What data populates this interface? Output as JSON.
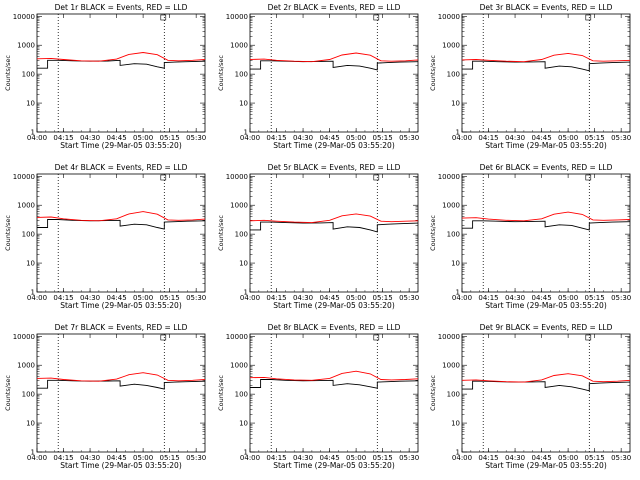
{
  "page_title": "",
  "colors": {
    "events": "#000000",
    "lld": "#ff0000",
    "axis": "#000000",
    "background": "#ffffff"
  },
  "chart_data": [
    {
      "type": "line",
      "title": "Det 1r BLACK = Events, RED = LLD",
      "xlabel": "Start Time (29-Mar-05 03:55:20)",
      "ylabel": "Counts/sec",
      "ylog": true,
      "ylim": [
        1,
        12000
      ],
      "xlim": [
        "04:00",
        "05:35"
      ],
      "xticks": [
        "04:00",
        "04:15",
        "04:30",
        "04:45",
        "05:00",
        "05:15",
        "05:30"
      ],
      "yticks": [
        "1",
        "10",
        "100",
        "1000",
        "10000"
      ],
      "grid": false,
      "markers": [
        "04:12",
        "05:12"
      ],
      "series": [
        {
          "name": "Events",
          "color": "#000000",
          "x": [
            "04:00",
            "04:06",
            "04:06",
            "04:12",
            "04:20",
            "04:30",
            "04:40",
            "04:47",
            "04:47",
            "04:55",
            "05:02",
            "05:08",
            "05:12",
            "05:12",
            "05:18",
            "05:25",
            "05:35"
          ],
          "y": [
            160,
            160,
            300,
            300,
            290,
            280,
            285,
            300,
            200,
            230,
            220,
            180,
            160,
            250,
            260,
            270,
            280
          ]
        },
        {
          "name": "LLD",
          "color": "#ff0000",
          "x": [
            "04:00",
            "04:08",
            "04:15",
            "04:25",
            "04:35",
            "04:45",
            "04:52",
            "05:00",
            "05:08",
            "05:14",
            "05:20",
            "05:28",
            "05:35"
          ],
          "y": [
            340,
            350,
            320,
            290,
            280,
            330,
            480,
            560,
            470,
            300,
            290,
            300,
            320
          ]
        }
      ]
    },
    {
      "type": "line",
      "title": "Det 2r BLACK = Events, RED = LLD",
      "xlabel": "Start Time (29-Mar-05 03:55:20)",
      "ylabel": "Counts/sec",
      "ylog": true,
      "ylim": [
        1,
        12000
      ],
      "xlim": [
        "04:00",
        "05:35"
      ],
      "xticks": [
        "04:00",
        "04:15",
        "04:30",
        "04:45",
        "05:00",
        "05:15",
        "05:30"
      ],
      "yticks": [
        "1",
        "10",
        "100",
        "1000",
        "10000"
      ],
      "grid": false,
      "markers": [
        "04:12",
        "05:12"
      ],
      "series": [
        {
          "name": "Events",
          "color": "#000000",
          "x": [
            "04:00",
            "04:06",
            "04:06",
            "04:12",
            "04:20",
            "04:30",
            "04:40",
            "04:47",
            "04:47",
            "04:55",
            "05:02",
            "05:08",
            "05:12",
            "05:12",
            "05:18",
            "05:25",
            "05:35"
          ],
          "y": [
            150,
            150,
            290,
            290,
            280,
            270,
            275,
            280,
            170,
            200,
            190,
            160,
            140,
            240,
            250,
            260,
            270
          ]
        },
        {
          "name": "LLD",
          "color": "#ff0000",
          "x": [
            "04:00",
            "04:08",
            "04:15",
            "04:25",
            "04:35",
            "04:45",
            "04:52",
            "05:00",
            "05:08",
            "05:14",
            "05:20",
            "05:28",
            "05:35"
          ],
          "y": [
            320,
            330,
            300,
            280,
            270,
            320,
            460,
            540,
            450,
            290,
            280,
            290,
            310
          ]
        }
      ]
    },
    {
      "type": "line",
      "title": "Det 3r BLACK = Events, RED = LLD",
      "xlabel": "Start Time (29-Mar-05 03:55:20)",
      "ylabel": "Counts/sec",
      "ylog": true,
      "ylim": [
        1,
        12000
      ],
      "xlim": [
        "04:00",
        "05:35"
      ],
      "xticks": [
        "04:00",
        "04:15",
        "04:30",
        "04:45",
        "05:00",
        "05:15",
        "05:30"
      ],
      "yticks": [
        "1",
        "10",
        "100",
        "1000",
        "10000"
      ],
      "grid": false,
      "markers": [
        "04:12",
        "05:12"
      ],
      "series": [
        {
          "name": "Events",
          "color": "#000000",
          "x": [
            "04:00",
            "04:06",
            "04:06",
            "04:12",
            "04:20",
            "04:30",
            "04:40",
            "04:47",
            "04:47",
            "04:55",
            "05:02",
            "05:08",
            "05:12",
            "05:12",
            "05:18",
            "05:25",
            "05:35"
          ],
          "y": [
            150,
            150,
            280,
            280,
            270,
            260,
            265,
            270,
            160,
            190,
            180,
            150,
            130,
            230,
            240,
            250,
            260
          ]
        },
        {
          "name": "LLD",
          "color": "#ff0000",
          "x": [
            "04:00",
            "04:08",
            "04:15",
            "04:25",
            "04:35",
            "04:45",
            "04:52",
            "05:00",
            "05:08",
            "05:14",
            "05:20",
            "05:28",
            "05:35"
          ],
          "y": [
            310,
            320,
            300,
            280,
            270,
            320,
            450,
            520,
            440,
            290,
            280,
            290,
            300
          ]
        }
      ]
    },
    {
      "type": "line",
      "title": "Det 4r BLACK = Events, RED = LLD",
      "xlabel": "Start Time (29-Mar-05 03:55:20)",
      "ylabel": "Counts/sec",
      "ylog": true,
      "ylim": [
        1,
        12000
      ],
      "xlim": [
        "04:00",
        "05:35"
      ],
      "xticks": [
        "04:00",
        "04:15",
        "04:30",
        "04:45",
        "05:00",
        "05:15",
        "05:30"
      ],
      "yticks": [
        "1",
        "10",
        "100",
        "1000",
        "10000"
      ],
      "grid": false,
      "markers": [
        "04:12",
        "05:12"
      ],
      "series": [
        {
          "name": "Events",
          "color": "#000000",
          "x": [
            "04:00",
            "04:06",
            "04:06",
            "04:12",
            "04:20",
            "04:30",
            "04:40",
            "04:47",
            "04:47",
            "04:55",
            "05:02",
            "05:08",
            "05:12",
            "05:12",
            "05:18",
            "05:25",
            "05:35"
          ],
          "y": [
            170,
            170,
            320,
            320,
            300,
            290,
            295,
            300,
            190,
            220,
            210,
            170,
            150,
            260,
            270,
            280,
            290
          ]
        },
        {
          "name": "LLD",
          "color": "#ff0000",
          "x": [
            "04:00",
            "04:08",
            "04:15",
            "04:25",
            "04:35",
            "04:45",
            "04:52",
            "05:00",
            "05:08",
            "05:14",
            "05:20",
            "05:28",
            "05:35"
          ],
          "y": [
            380,
            390,
            340,
            300,
            290,
            340,
            500,
            600,
            490,
            310,
            300,
            310,
            330
          ]
        }
      ]
    },
    {
      "type": "line",
      "title": "Det 5r BLACK = Events, RED = LLD",
      "xlabel": "Start Time (29-Mar-05 03:55:20)",
      "ylabel": "Counts/sec",
      "ylog": true,
      "ylim": [
        1,
        12000
      ],
      "xlim": [
        "04:00",
        "05:35"
      ],
      "xticks": [
        "04:00",
        "04:15",
        "04:30",
        "04:45",
        "05:00",
        "05:15",
        "05:30"
      ],
      "yticks": [
        "1",
        "10",
        "100",
        "1000",
        "10000"
      ],
      "grid": false,
      "markers": [
        "04:12",
        "05:12"
      ],
      "series": [
        {
          "name": "Events",
          "color": "#000000",
          "x": [
            "04:00",
            "04:06",
            "04:06",
            "04:12",
            "04:20",
            "04:30",
            "04:40",
            "04:47",
            "04:47",
            "04:55",
            "05:02",
            "05:08",
            "05:12",
            "05:12",
            "05:18",
            "05:25",
            "05:35"
          ],
          "y": [
            140,
            140,
            260,
            260,
            250,
            240,
            245,
            250,
            150,
            180,
            170,
            140,
            120,
            210,
            220,
            230,
            240
          ]
        },
        {
          "name": "LLD",
          "color": "#ff0000",
          "x": [
            "04:00",
            "04:08",
            "04:15",
            "04:25",
            "04:35",
            "04:45",
            "04:52",
            "05:00",
            "05:08",
            "05:14",
            "05:20",
            "05:28",
            "05:35"
          ],
          "y": [
            290,
            300,
            280,
            260,
            250,
            300,
            430,
            500,
            420,
            280,
            270,
            280,
            290
          ]
        }
      ]
    },
    {
      "type": "line",
      "title": "Det 6r BLACK = Events, RED = LLD",
      "xlabel": "Start Time (29-Mar-05 03:55:20)",
      "ylabel": "Counts/sec",
      "ylog": true,
      "ylim": [
        1,
        12000
      ],
      "xlim": [
        "04:00",
        "05:35"
      ],
      "xticks": [
        "04:00",
        "04:15",
        "04:30",
        "04:45",
        "05:00",
        "05:15",
        "05:30"
      ],
      "yticks": [
        "1",
        "10",
        "100",
        "1000",
        "10000"
      ],
      "grid": false,
      "markers": [
        "04:12",
        "05:12"
      ],
      "series": [
        {
          "name": "Events",
          "color": "#000000",
          "x": [
            "04:00",
            "04:06",
            "04:06",
            "04:12",
            "04:20",
            "04:30",
            "04:40",
            "04:47",
            "04:47",
            "04:55",
            "05:02",
            "05:08",
            "05:12",
            "05:12",
            "05:18",
            "05:25",
            "05:35"
          ],
          "y": [
            160,
            160,
            290,
            290,
            280,
            270,
            275,
            280,
            180,
            210,
            200,
            160,
            140,
            240,
            250,
            260,
            270
          ]
        },
        {
          "name": "LLD",
          "color": "#ff0000",
          "x": [
            "04:00",
            "04:08",
            "04:15",
            "04:25",
            "04:35",
            "04:45",
            "04:52",
            "05:00",
            "05:08",
            "05:14",
            "05:20",
            "05:28",
            "05:35"
          ],
          "y": [
            360,
            370,
            330,
            300,
            290,
            340,
            490,
            580,
            480,
            310,
            300,
            310,
            320
          ]
        }
      ]
    },
    {
      "type": "line",
      "title": "Det 7r BLACK = Events, RED = LLD",
      "xlabel": "Start Time (29-Mar-05 03:55:20)",
      "ylabel": "Counts/sec",
      "ylog": true,
      "ylim": [
        1,
        12000
      ],
      "xlim": [
        "04:00",
        "05:35"
      ],
      "xticks": [
        "04:00",
        "04:15",
        "04:30",
        "04:45",
        "05:00",
        "05:15",
        "05:30"
      ],
      "yticks": [
        "1",
        "10",
        "100",
        "1000",
        "10000"
      ],
      "grid": false,
      "markers": [
        "04:12",
        "05:12"
      ],
      "series": [
        {
          "name": "Events",
          "color": "#000000",
          "x": [
            "04:00",
            "04:06",
            "04:06",
            "04:12",
            "04:20",
            "04:30",
            "04:40",
            "04:47",
            "04:47",
            "04:55",
            "05:02",
            "05:08",
            "05:12",
            "05:12",
            "05:18",
            "05:25",
            "05:35"
          ],
          "y": [
            160,
            160,
            300,
            300,
            290,
            280,
            285,
            290,
            190,
            220,
            200,
            170,
            150,
            250,
            260,
            270,
            280
          ]
        },
        {
          "name": "LLD",
          "color": "#ff0000",
          "x": [
            "04:00",
            "04:08",
            "04:15",
            "04:25",
            "04:35",
            "04:45",
            "04:52",
            "05:00",
            "05:08",
            "05:14",
            "05:20",
            "05:28",
            "05:35"
          ],
          "y": [
            350,
            360,
            320,
            290,
            280,
            330,
            470,
            550,
            460,
            300,
            290,
            300,
            320
          ]
        }
      ]
    },
    {
      "type": "line",
      "title": "Det 8r BLACK = Events, RED = LLD",
      "xlabel": "Start Time (29-Mar-05 03:55:20)",
      "ylabel": "Counts/sec",
      "ylog": true,
      "ylim": [
        1,
        12000
      ],
      "xlim": [
        "04:00",
        "05:35"
      ],
      "xticks": [
        "04:00",
        "04:15",
        "04:30",
        "04:45",
        "05:00",
        "05:15",
        "05:30"
      ],
      "yticks": [
        "1",
        "10",
        "100",
        "1000",
        "10000"
      ],
      "grid": false,
      "markers": [
        "04:12",
        "05:12"
      ],
      "series": [
        {
          "name": "Events",
          "color": "#000000",
          "x": [
            "04:00",
            "04:06",
            "04:06",
            "04:12",
            "04:20",
            "04:30",
            "04:40",
            "04:47",
            "04:47",
            "04:55",
            "05:02",
            "05:08",
            "05:12",
            "05:12",
            "05:18",
            "05:25",
            "05:35"
          ],
          "y": [
            170,
            170,
            320,
            320,
            300,
            290,
            295,
            300,
            200,
            230,
            210,
            180,
            160,
            260,
            270,
            280,
            290
          ]
        },
        {
          "name": "LLD",
          "color": "#ff0000",
          "x": [
            "04:00",
            "04:08",
            "04:15",
            "04:25",
            "04:35",
            "04:45",
            "04:52",
            "05:00",
            "05:08",
            "05:14",
            "05:20",
            "05:28",
            "05:35"
          ],
          "y": [
            370,
            380,
            340,
            310,
            300,
            350,
            520,
            620,
            500,
            320,
            310,
            320,
            340
          ]
        }
      ]
    },
    {
      "type": "line",
      "title": "Det 9r BLACK = Events, RED = LLD",
      "xlabel": "Start Time (29-Mar-05 03:55:20)",
      "ylabel": "Counts/sec",
      "ylog": true,
      "ylim": [
        1,
        12000
      ],
      "xlim": [
        "04:00",
        "05:35"
      ],
      "xticks": [
        "04:00",
        "04:15",
        "04:30",
        "04:45",
        "05:00",
        "05:15",
        "05:30"
      ],
      "yticks": [
        "1",
        "10",
        "100",
        "1000",
        "10000"
      ],
      "grid": false,
      "markers": [
        "04:12",
        "05:12"
      ],
      "series": [
        {
          "name": "Events",
          "color": "#000000",
          "x": [
            "04:00",
            "04:06",
            "04:06",
            "04:12",
            "04:20",
            "04:30",
            "04:40",
            "04:47",
            "04:47",
            "04:55",
            "05:02",
            "05:08",
            "05:12",
            "05:12",
            "05:18",
            "05:25",
            "05:35"
          ],
          "y": [
            150,
            150,
            280,
            280,
            270,
            260,
            265,
            270,
            170,
            200,
            180,
            150,
            130,
            230,
            240,
            250,
            260
          ]
        },
        {
          "name": "LLD",
          "color": "#ff0000",
          "x": [
            "04:00",
            "04:08",
            "04:15",
            "04:25",
            "04:35",
            "04:45",
            "04:52",
            "05:00",
            "05:08",
            "05:14",
            "05:20",
            "05:28",
            "05:35"
          ],
          "y": [
            300,
            310,
            290,
            270,
            260,
            310,
            440,
            510,
            430,
            280,
            270,
            280,
            300
          ]
        }
      ]
    }
  ]
}
